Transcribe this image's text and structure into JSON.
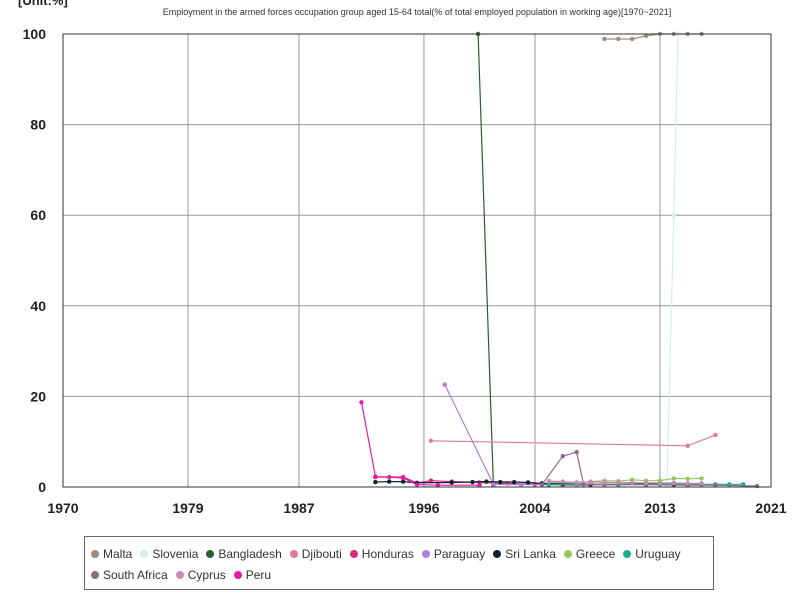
{
  "unit_label": "[Unit:%]",
  "chart_data": {
    "type": "line",
    "title": "Employment in the armed forces occupation group aged 15-64 total(% of total employed population in working age)[1970~2021]",
    "xlabel": "",
    "ylabel": "",
    "xlim": [
      1970,
      2021
    ],
    "ylim": [
      0,
      100
    ],
    "x_ticks": [
      "1970",
      "1979",
      "1987",
      "1996",
      "2004",
      "2013",
      "2021"
    ],
    "y_ticks": [
      "0",
      "20",
      "40",
      "60",
      "80",
      "100"
    ],
    "grid": true,
    "legend_position": "bottom",
    "series": [
      {
        "name": "Malta",
        "color": "#a08a7c",
        "points": [
          [
            2009,
            98.9
          ],
          [
            2010,
            98.9
          ],
          [
            2011,
            98.9
          ],
          [
            2012,
            99.6
          ],
          [
            2013,
            100
          ],
          [
            2014,
            100
          ],
          [
            2015,
            100
          ],
          [
            2016,
            100
          ]
        ]
      },
      {
        "name": "Slovenia",
        "color": "#d7eee6",
        "points": [
          [
            2013.5,
            0.4
          ],
          [
            2014,
            60
          ],
          [
            2014.3,
            100
          ]
        ]
      },
      {
        "name": "Bangladesh",
        "color": "#2e5e2e",
        "points": [
          [
            1999.9,
            100
          ],
          [
            2001,
            0.4
          ]
        ]
      },
      {
        "name": "Djibouti",
        "color": "#df7b97",
        "points": [
          [
            1996.5,
            10.2
          ],
          [
            2015,
            9.1
          ],
          [
            2017,
            11.5
          ]
        ]
      },
      {
        "name": "Honduras",
        "color": "#d8277d",
        "points": [
          [
            1992.5,
            2.2
          ],
          [
            1993.5,
            2.2
          ],
          [
            1994.5,
            2.2
          ],
          [
            1995.5,
            0.9
          ],
          [
            1996.5,
            1.4
          ],
          [
            1998,
            1.2
          ],
          [
            2000,
            1.0
          ],
          [
            2002,
            0.8
          ],
          [
            2004,
            0.6
          ],
          [
            2006,
            0.4
          ],
          [
            2008,
            0.4
          ]
        ]
      },
      {
        "name": "Paraguay",
        "color": "#b07fdc",
        "points": [
          [
            1997.5,
            22.6
          ],
          [
            2001,
            0.6
          ],
          [
            2003,
            0.5
          ],
          [
            2005,
            0.5
          ],
          [
            2007,
            0.4
          ],
          [
            2010,
            0.5
          ],
          [
            2014,
            0.8
          ],
          [
            2016,
            0.5
          ]
        ]
      },
      {
        "name": "Sri Lanka",
        "color": "#0f2236",
        "points": [
          [
            1992.5,
            1.1
          ],
          [
            1993.5,
            1.2
          ],
          [
            1994.5,
            1.2
          ],
          [
            1995.5,
            0.9
          ],
          [
            1998,
            1.0
          ],
          [
            1999.5,
            1.1
          ],
          [
            2000.5,
            1.2
          ],
          [
            2001.5,
            1.1
          ],
          [
            2002.5,
            1.1
          ],
          [
            2003.5,
            1.0
          ],
          [
            2004.5,
            0.8
          ],
          [
            2006,
            0.7
          ],
          [
            2008,
            0.6
          ],
          [
            2010,
            0.6
          ],
          [
            2012,
            0.7
          ],
          [
            2014,
            0.5
          ],
          [
            2016,
            0.6
          ]
        ]
      },
      {
        "name": "Greece",
        "color": "#93c85a",
        "points": [
          [
            2005,
            1.0
          ],
          [
            2007,
            1.0
          ],
          [
            2008,
            1.2
          ],
          [
            2009,
            1.4
          ],
          [
            2010,
            1.3
          ],
          [
            2011,
            1.6
          ],
          [
            2012,
            1.4
          ],
          [
            2013,
            1.4
          ],
          [
            2014,
            1.9
          ],
          [
            2015,
            1.8
          ],
          [
            2016,
            1.9
          ]
        ]
      },
      {
        "name": "Uruguay",
        "color": "#1fae8a",
        "points": [
          [
            2005,
            0.5
          ],
          [
            2010,
            0.5
          ],
          [
            2013,
            0.6
          ],
          [
            2015,
            0.6
          ],
          [
            2016,
            0.6
          ],
          [
            2017,
            0.6
          ],
          [
            2018,
            0.6
          ],
          [
            2019,
            0.6
          ]
        ]
      },
      {
        "name": "South Africa",
        "color": "#8e6a8a",
        "points": [
          [
            2004.5,
            0.5
          ],
          [
            2006,
            6.8
          ],
          [
            2007,
            7.7
          ],
          [
            2007.5,
            0.6
          ],
          [
            2009,
            0.5
          ],
          [
            2012,
            0.5
          ],
          [
            2015,
            0.4
          ],
          [
            2017,
            0.4
          ],
          [
            2020,
            0.2
          ]
        ]
      },
      {
        "name": "Cyprus",
        "color": "#c78ab3",
        "points": [
          [
            2005,
            1.3
          ],
          [
            2006,
            1.2
          ],
          [
            2007,
            1.0
          ],
          [
            2008,
            1.1
          ],
          [
            2009,
            1.0
          ],
          [
            2010,
            1.0
          ],
          [
            2011,
            1.0
          ],
          [
            2012,
            0.9
          ],
          [
            2013,
            0.9
          ],
          [
            2014,
            0.9
          ],
          [
            2015,
            0.8
          ],
          [
            2016,
            0.8
          ]
        ]
      },
      {
        "name": "Peru",
        "color": "#e619a5",
        "points": [
          [
            1991.5,
            18.7
          ],
          [
            1992.5,
            2.3
          ],
          [
            1994.5,
            2.0
          ],
          [
            1995.5,
            0.5
          ],
          [
            1997,
            0.4
          ],
          [
            2000,
            0.4
          ]
        ]
      }
    ]
  }
}
